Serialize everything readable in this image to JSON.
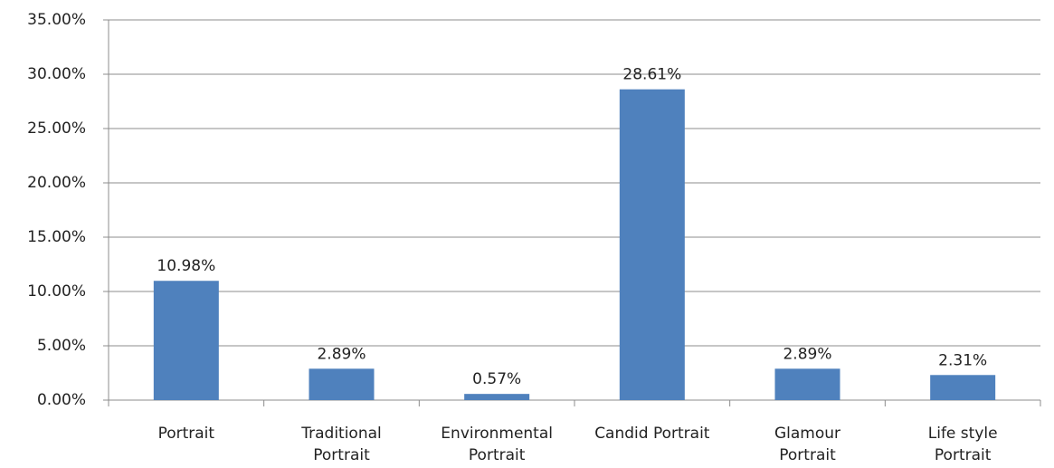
{
  "chart_data": {
    "type": "bar",
    "categories": [
      "Portrait",
      "Traditional\nPortrait",
      "Environmental\nPortrait",
      "Candid Portrait",
      "Glamour\nPortrait",
      "Life style\nPortrait"
    ],
    "values": [
      10.98,
      2.89,
      0.57,
      28.61,
      2.89,
      2.31
    ],
    "value_labels": [
      "10.98%",
      "2.89%",
      "0.57%",
      "28.61%",
      "2.89%",
      "2.31%"
    ],
    "color": "#4f81bd",
    "ylim": [
      0,
      35
    ],
    "yticks": [
      {
        "value": 0,
        "label": "0.00%"
      },
      {
        "value": 5,
        "label": "5.00%"
      },
      {
        "value": 10,
        "label": "10.00%"
      },
      {
        "value": 15,
        "label": "15.00%"
      },
      {
        "value": 20,
        "label": "20.00%"
      },
      {
        "value": 25,
        "label": "25.00%"
      },
      {
        "value": 30,
        "label": "30.00%"
      },
      {
        "value": 35,
        "label": "35.00%"
      }
    ],
    "grid": true
  }
}
